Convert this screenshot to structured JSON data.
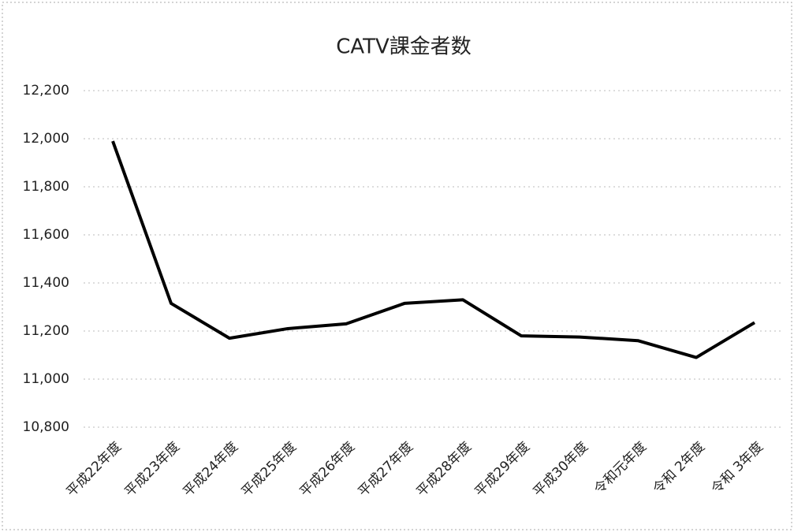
{
  "chart_data": {
    "type": "line",
    "title": "CATV課金者数",
    "categories": [
      "平成22年度",
      "平成23年度",
      "平成24年度",
      "平成25年度",
      "平成26年度",
      "平成27年度",
      "平成28年度",
      "平成29年度",
      "平成30年度",
      "令和元年度",
      "令和 2年度",
      "令和 3年度"
    ],
    "series": [
      {
        "name": "CATV課金者数",
        "color": "#000000",
        "values": [
          11990,
          11315,
          11170,
          11210,
          11230,
          11315,
          11330,
          11180,
          11175,
          11160,
          11090,
          11235
        ]
      }
    ],
    "ylim": [
      10800,
      12200
    ],
    "yticks": [
      {
        "value": 10800,
        "label": "10,800"
      },
      {
        "value": 11000,
        "label": "11,000"
      },
      {
        "value": 11200,
        "label": "11,200"
      },
      {
        "value": 11400,
        "label": "11,400"
      },
      {
        "value": 11600,
        "label": "11,600"
      },
      {
        "value": 11800,
        "label": "11,800"
      },
      {
        "value": 12000,
        "label": "12,000"
      },
      {
        "value": 12200,
        "label": "12,200"
      }
    ],
    "grid": true
  }
}
